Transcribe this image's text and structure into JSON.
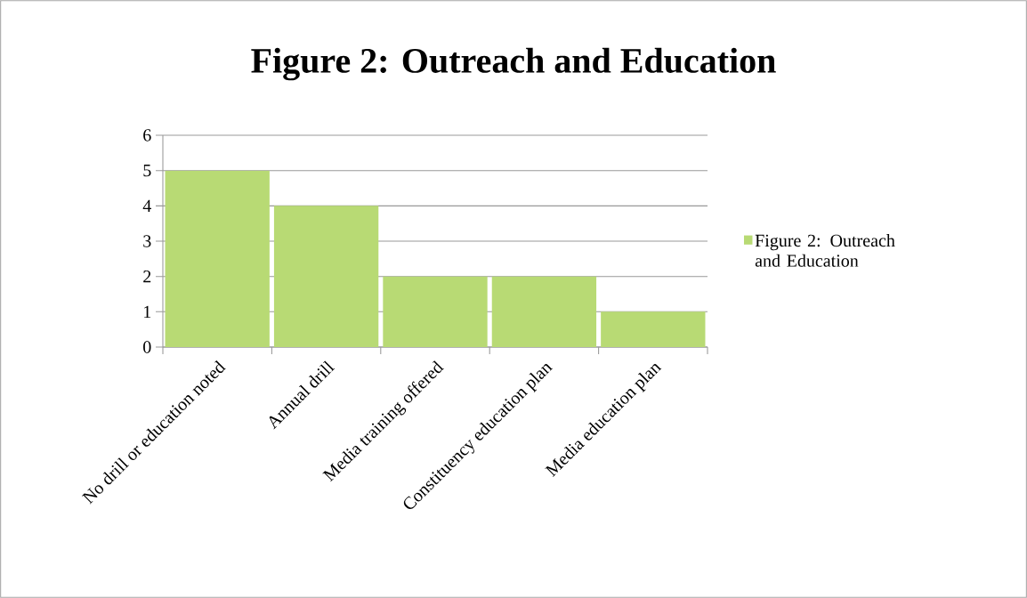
{
  "chart_data": {
    "type": "bar",
    "title": "Figure 2: Outreach and Education",
    "categories": [
      "No drill or education noted",
      "Annual drill",
      "Media training offered",
      "Constituency education plan",
      "Media education plan"
    ],
    "series": [
      {
        "name": "Figure 2: Outreach and Education",
        "color": "#b8da74",
        "values": [
          5,
          4,
          2,
          2,
          1
        ]
      }
    ],
    "ylim": [
      0,
      6
    ],
    "yticks": [
      0,
      1,
      2,
      3,
      4,
      5,
      6
    ],
    "grid": "y",
    "legend": "right"
  }
}
